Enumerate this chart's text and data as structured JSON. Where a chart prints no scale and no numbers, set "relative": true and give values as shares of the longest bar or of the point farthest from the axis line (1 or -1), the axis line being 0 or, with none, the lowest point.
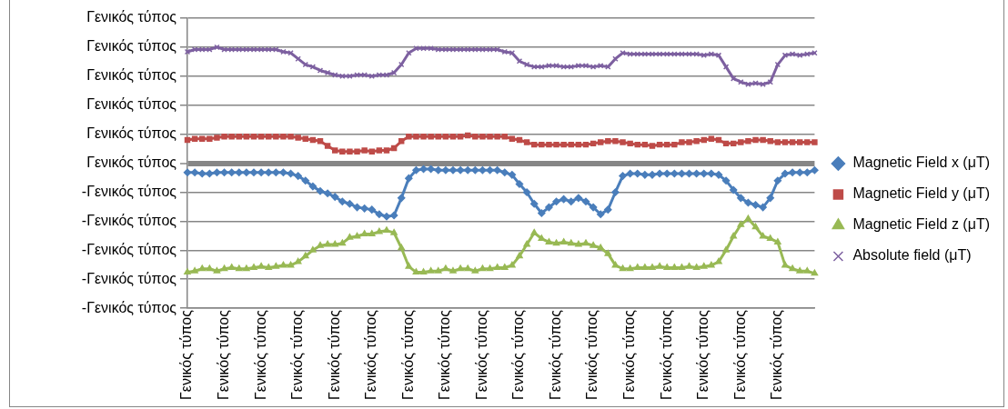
{
  "chart_data": {
    "type": "line",
    "relative": true,
    "categories": [
      "Γενικός τύπος",
      null,
      null,
      null,
      null,
      "Γενικός τύπος",
      null,
      null,
      null,
      null,
      "Γενικός τύπος",
      null,
      null,
      null,
      null,
      "Γενικός τύπος",
      null,
      null,
      null,
      null,
      "Γενικός τύπος",
      null,
      null,
      null,
      null,
      "Γενικός τύπος",
      null,
      null,
      null,
      null,
      "Γενικός τύπος",
      null,
      null,
      null,
      null,
      "Γενικός τύπος",
      null,
      null,
      null,
      null,
      "Γενικός τύπος",
      null,
      null,
      null,
      null,
      "Γενικός τύπος",
      null,
      null,
      null,
      null,
      "Γενικός τύπος",
      null,
      null,
      null,
      null,
      "Γενικός τύπος",
      null,
      null,
      null,
      null,
      "Γενικός τύπος",
      null,
      null,
      null,
      null,
      "Γενικός τύπος",
      null,
      null,
      null,
      null,
      "Γενικός τύπος",
      null,
      null,
      null,
      null,
      "Γενικός τύπος",
      null,
      null,
      null,
      null,
      "Γενικός τύπος",
      null,
      null,
      null,
      null,
      null
    ],
    "series": [
      {
        "name": "Magnetic Field x (μT)",
        "color": "#4a7ebb",
        "marker": "diamond",
        "values": [
          -0.08,
          -0.08,
          -0.09,
          -0.09,
          -0.08,
          -0.08,
          -0.08,
          -0.08,
          -0.08,
          -0.08,
          -0.08,
          -0.08,
          -0.08,
          -0.08,
          -0.09,
          -0.11,
          -0.15,
          -0.2,
          -0.24,
          -0.26,
          -0.29,
          -0.33,
          -0.35,
          -0.38,
          -0.39,
          -0.4,
          -0.44,
          -0.46,
          -0.45,
          -0.3,
          -0.13,
          -0.06,
          -0.05,
          -0.05,
          -0.06,
          -0.06,
          -0.06,
          -0.06,
          -0.06,
          -0.06,
          -0.06,
          -0.06,
          -0.06,
          -0.08,
          -0.1,
          -0.18,
          -0.25,
          -0.35,
          -0.43,
          -0.38,
          -0.33,
          -0.31,
          -0.33,
          -0.3,
          -0.33,
          -0.38,
          -0.44,
          -0.4,
          -0.25,
          -0.11,
          -0.09,
          -0.09,
          -0.1,
          -0.1,
          -0.09,
          -0.09,
          -0.09,
          -0.09,
          -0.09,
          -0.09,
          -0.09,
          -0.09,
          -0.1,
          -0.15,
          -0.23,
          -0.3,
          -0.34,
          -0.36,
          -0.38,
          -0.3,
          -0.15,
          -0.09,
          -0.08,
          -0.08,
          -0.08,
          -0.06
        ]
      },
      {
        "name": "Magnetic Field y (μT)",
        "color": "#be4b48",
        "marker": "square",
        "values": [
          0.2,
          0.21,
          0.21,
          0.21,
          0.22,
          0.23,
          0.23,
          0.23,
          0.23,
          0.23,
          0.23,
          0.23,
          0.23,
          0.23,
          0.23,
          0.22,
          0.21,
          0.2,
          0.19,
          0.15,
          0.11,
          0.1,
          0.1,
          0.1,
          0.11,
          0.1,
          0.11,
          0.11,
          0.13,
          0.19,
          0.23,
          0.23,
          0.23,
          0.23,
          0.23,
          0.23,
          0.23,
          0.23,
          0.24,
          0.23,
          0.23,
          0.23,
          0.23,
          0.23,
          0.21,
          0.2,
          0.18,
          0.16,
          0.16,
          0.16,
          0.16,
          0.16,
          0.16,
          0.16,
          0.16,
          0.17,
          0.18,
          0.19,
          0.19,
          0.18,
          0.17,
          0.16,
          0.16,
          0.15,
          0.16,
          0.16,
          0.16,
          0.18,
          0.18,
          0.19,
          0.2,
          0.21,
          0.2,
          0.17,
          0.17,
          0.18,
          0.19,
          0.2,
          0.2,
          0.19,
          0.18,
          0.18,
          0.18,
          0.18,
          0.18,
          0.18
        ]
      },
      {
        "name": "Magnetic Field z (μT)",
        "color": "#98b954",
        "marker": "triangle",
        "values": [
          -0.94,
          -0.93,
          -0.91,
          -0.91,
          -0.93,
          -0.91,
          -0.9,
          -0.91,
          -0.91,
          -0.9,
          -0.89,
          -0.9,
          -0.89,
          -0.88,
          -0.88,
          -0.85,
          -0.8,
          -0.75,
          -0.71,
          -0.7,
          -0.7,
          -0.69,
          -0.64,
          -0.63,
          -0.61,
          -0.61,
          -0.59,
          -0.58,
          -0.6,
          -0.73,
          -0.89,
          -0.94,
          -0.94,
          -0.93,
          -0.93,
          -0.91,
          -0.93,
          -0.91,
          -0.91,
          -0.93,
          -0.91,
          -0.91,
          -0.9,
          -0.9,
          -0.88,
          -0.8,
          -0.7,
          -0.6,
          -0.65,
          -0.68,
          -0.69,
          -0.68,
          -0.69,
          -0.7,
          -0.69,
          -0.71,
          -0.73,
          -0.78,
          -0.88,
          -0.91,
          -0.91,
          -0.9,
          -0.9,
          -0.9,
          -0.89,
          -0.9,
          -0.9,
          -0.9,
          -0.89,
          -0.9,
          -0.89,
          -0.88,
          -0.85,
          -0.75,
          -0.63,
          -0.53,
          -0.48,
          -0.55,
          -0.63,
          -0.65,
          -0.68,
          -0.88,
          -0.91,
          -0.93,
          -0.93,
          -0.95
        ]
      },
      {
        "name": "Absolute field (μT)",
        "color": "#7d60a0",
        "marker": "cross",
        "values": [
          0.96,
          0.98,
          0.98,
          0.98,
          1,
          0.98,
          0.98,
          0.98,
          0.98,
          0.98,
          0.98,
          0.98,
          0.98,
          0.96,
          0.95,
          0.9,
          0.85,
          0.83,
          0.8,
          0.78,
          0.76,
          0.75,
          0.75,
          0.76,
          0.76,
          0.75,
          0.76,
          0.76,
          0.78,
          0.85,
          0.95,
          0.99,
          0.99,
          0.99,
          0.98,
          0.98,
          0.98,
          0.98,
          0.98,
          0.98,
          0.98,
          0.98,
          0.98,
          0.96,
          0.95,
          0.88,
          0.85,
          0.83,
          0.83,
          0.84,
          0.84,
          0.83,
          0.83,
          0.84,
          0.84,
          0.83,
          0.84,
          0.83,
          0.9,
          0.95,
          0.94,
          0.94,
          0.94,
          0.94,
          0.94,
          0.94,
          0.94,
          0.94,
          0.94,
          0.94,
          0.93,
          0.94,
          0.93,
          0.83,
          0.73,
          0.7,
          0.68,
          0.69,
          0.68,
          0.7,
          0.85,
          0.93,
          0.94,
          0.93,
          0.94,
          0.95
        ]
      }
    ],
    "annotations": [
      "-Γενικός τύπος",
      "-Γενικός τύπος",
      "-Γενικός τύπος",
      "-Γενικός τύπος",
      "-Γενικός τύπος",
      "Γενικός τύπος",
      "Γενικός τύπος",
      "Γενικός τύπος",
      "Γενικός τύπος",
      "Γενικός τύπος",
      "Γενικός τύπος"
    ],
    "grid": "y",
    "legend": "right"
  }
}
